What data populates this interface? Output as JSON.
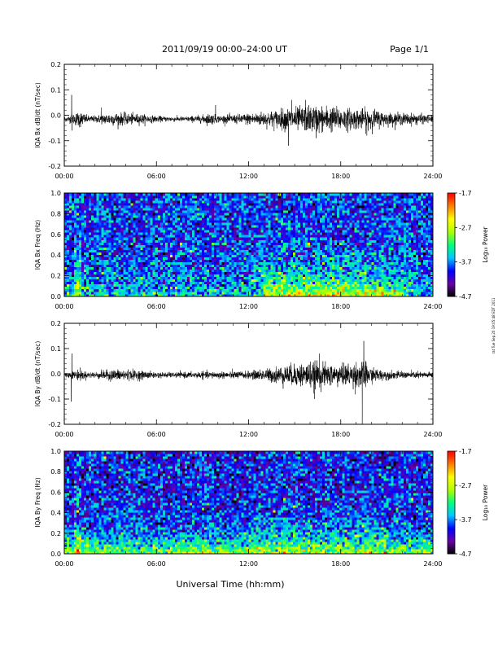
{
  "header": {
    "title": "2011/09/19  00:00–24:00 UT",
    "page": "Page 1/1"
  },
  "footer_stamp": "rat Tue Sep 20 19:05:48 EDT 2011",
  "chart_data": [
    {
      "type": "line",
      "ylabel": "IQA Bx dB/dt (nT/sec)",
      "ylim": [
        -0.2,
        0.2
      ],
      "yticks": [
        -0.2,
        -0.1,
        0.0,
        0.1,
        0.2
      ],
      "ytick_labels": [
        "-0.2",
        "-0.1",
        "0.0",
        "0.1",
        "0.2"
      ],
      "xlim": [
        0,
        24
      ],
      "xticks": [
        0,
        6,
        12,
        18,
        24
      ],
      "xtick_labels": [
        "00:00",
        "06:00",
        "12:00",
        "18:00",
        "24:00"
      ],
      "grid": false,
      "series": [
        {
          "color": "#000000",
          "envelope_hours": [
            0,
            0.5,
            1,
            1.5,
            2,
            3,
            4,
            5,
            6,
            7,
            8,
            9,
            9.5,
            10,
            11,
            12,
            13,
            14,
            14.5,
            15,
            16,
            17,
            18,
            19,
            20,
            21,
            22,
            23,
            24
          ],
          "envelope_amplitude": [
            0.008,
            0.015,
            0.03,
            0.012,
            0.012,
            0.022,
            0.02,
            0.017,
            0.01,
            0.009,
            0.009,
            0.014,
            0.02,
            0.012,
            0.015,
            0.02,
            0.025,
            0.032,
            0.038,
            0.04,
            0.045,
            0.045,
            0.04,
            0.035,
            0.035,
            0.022,
            0.02,
            0.018,
            0.012
          ],
          "spikes": [
            {
              "hour": 0.48,
              "value": 0.08
            },
            {
              "hour": 0.5,
              "value": -0.06
            },
            {
              "hour": 2.4,
              "value": 0.03
            },
            {
              "hour": 9.85,
              "value": 0.04
            },
            {
              "hour": 14.6,
              "value": -0.12
            },
            {
              "hour": 14.8,
              "value": 0.06
            },
            {
              "hour": 15.7,
              "value": 0.06
            },
            {
              "hour": 16.4,
              "value": -0.09
            },
            {
              "hour": 19.7,
              "value": -0.08
            }
          ],
          "offset": -0.015
        }
      ]
    },
    {
      "type": "heatmap",
      "ylabel": "IQA Bx Freq (Hz)",
      "ylim": [
        0.0,
        1.0
      ],
      "yticks": [
        0.0,
        0.2,
        0.4,
        0.6,
        0.8,
        1.0
      ],
      "ytick_labels": [
        "0.0",
        "0.2",
        "0.4",
        "0.6",
        "0.8",
        "1.0"
      ],
      "xlim": [
        0,
        24
      ],
      "xticks": [
        0,
        6,
        12,
        18,
        24
      ],
      "xtick_labels": [
        "00:00",
        "06:00",
        "12:00",
        "18:00",
        "24:00"
      ],
      "colorbar": {
        "label": "Log₁₀ Power",
        "range": [
          -4.7,
          -1.7
        ],
        "ticks": [
          -4.7,
          -3.7,
          -2.7,
          -1.7
        ],
        "tick_labels": [
          "-4.7",
          "-3.7",
          "-2.7",
          "-1.7"
        ],
        "colors": [
          "#000000",
          "#6a00a8",
          "#0000ff",
          "#00c8ff",
          "#00ff80",
          "#b0ff00",
          "#ffff00",
          "#ff8000",
          "#ff0000"
        ]
      },
      "description_levels": {
        "background": -3.9,
        "low_freq_enhanced_hours": [
          13,
          22
        ],
        "low_freq_enhanced_level": -2.6,
        "vertical_band_hour": 0.9
      }
    },
    {
      "type": "line",
      "ylabel": "IQA By dB/dt (nT/sec)",
      "ylim": [
        -0.2,
        0.2
      ],
      "yticks": [
        -0.2,
        -0.1,
        0.0,
        0.1,
        0.2
      ],
      "ytick_labels": [
        "-0.2",
        "-0.1",
        "0.0",
        "0.1",
        "0.2"
      ],
      "xlim": [
        0,
        24
      ],
      "xticks": [
        0,
        6,
        12,
        18,
        24
      ],
      "xtick_labels": [
        "00:00",
        "06:00",
        "12:00",
        "18:00",
        "24:00"
      ],
      "grid": false,
      "series": [
        {
          "color": "#000000",
          "envelope_hours": [
            0,
            0.5,
            1,
            1.5,
            2,
            3,
            4,
            5,
            6,
            7,
            8,
            9,
            10,
            11,
            12,
            13,
            14,
            15,
            16,
            17,
            18,
            19,
            19.5,
            20,
            21,
            22,
            23,
            24
          ],
          "envelope_amplitude": [
            0.008,
            0.012,
            0.02,
            0.01,
            0.012,
            0.018,
            0.02,
            0.015,
            0.01,
            0.009,
            0.01,
            0.012,
            0.012,
            0.013,
            0.013,
            0.02,
            0.03,
            0.038,
            0.045,
            0.04,
            0.035,
            0.045,
            0.05,
            0.025,
            0.015,
            0.012,
            0.012,
            0.01
          ],
          "spikes": [
            {
              "hour": 0.45,
              "value": -0.11
            },
            {
              "hour": 0.5,
              "value": 0.08
            },
            {
              "hour": 16.6,
              "value": 0.08
            },
            {
              "hour": 16.3,
              "value": -0.1
            },
            {
              "hour": 19.5,
              "value": 0.13
            },
            {
              "hour": 19.4,
              "value": -0.2
            }
          ],
          "offset": -0.005
        }
      ]
    },
    {
      "type": "heatmap",
      "ylabel": "IQA By Freq (Hz)",
      "ylim": [
        0.0,
        1.0
      ],
      "yticks": [
        0.0,
        0.2,
        0.4,
        0.6,
        0.8,
        1.0
      ],
      "ytick_labels": [
        "0.0",
        "0.2",
        "0.4",
        "0.6",
        "0.8",
        "1.0"
      ],
      "xlim": [
        0,
        24
      ],
      "xticks": [
        0,
        6,
        12,
        18,
        24
      ],
      "xtick_labels": [
        "00:00",
        "06:00",
        "12:00",
        "18:00",
        "24:00"
      ],
      "colorbar": {
        "label": "Log₁₀ Power",
        "range": [
          -4.7,
          -1.7
        ],
        "ticks": [
          -4.7,
          -3.7,
          -2.7,
          -1.7
        ],
        "tick_labels": [
          "-4.7",
          "-3.7",
          "-2.7",
          "-1.7"
        ],
        "colors": [
          "#000000",
          "#6a00a8",
          "#0000ff",
          "#00c8ff",
          "#00ff80",
          "#b0ff00",
          "#ffff00",
          "#ff8000",
          "#ff0000"
        ]
      },
      "description_levels": {
        "background": -4.0,
        "low_freq_enhanced_hours": [
          0,
          24
        ],
        "low_freq_enhanced_level": -2.8,
        "vertical_band_hour": 0.9
      }
    }
  ],
  "xaxis_title": "Universal Time (hh:mm)"
}
